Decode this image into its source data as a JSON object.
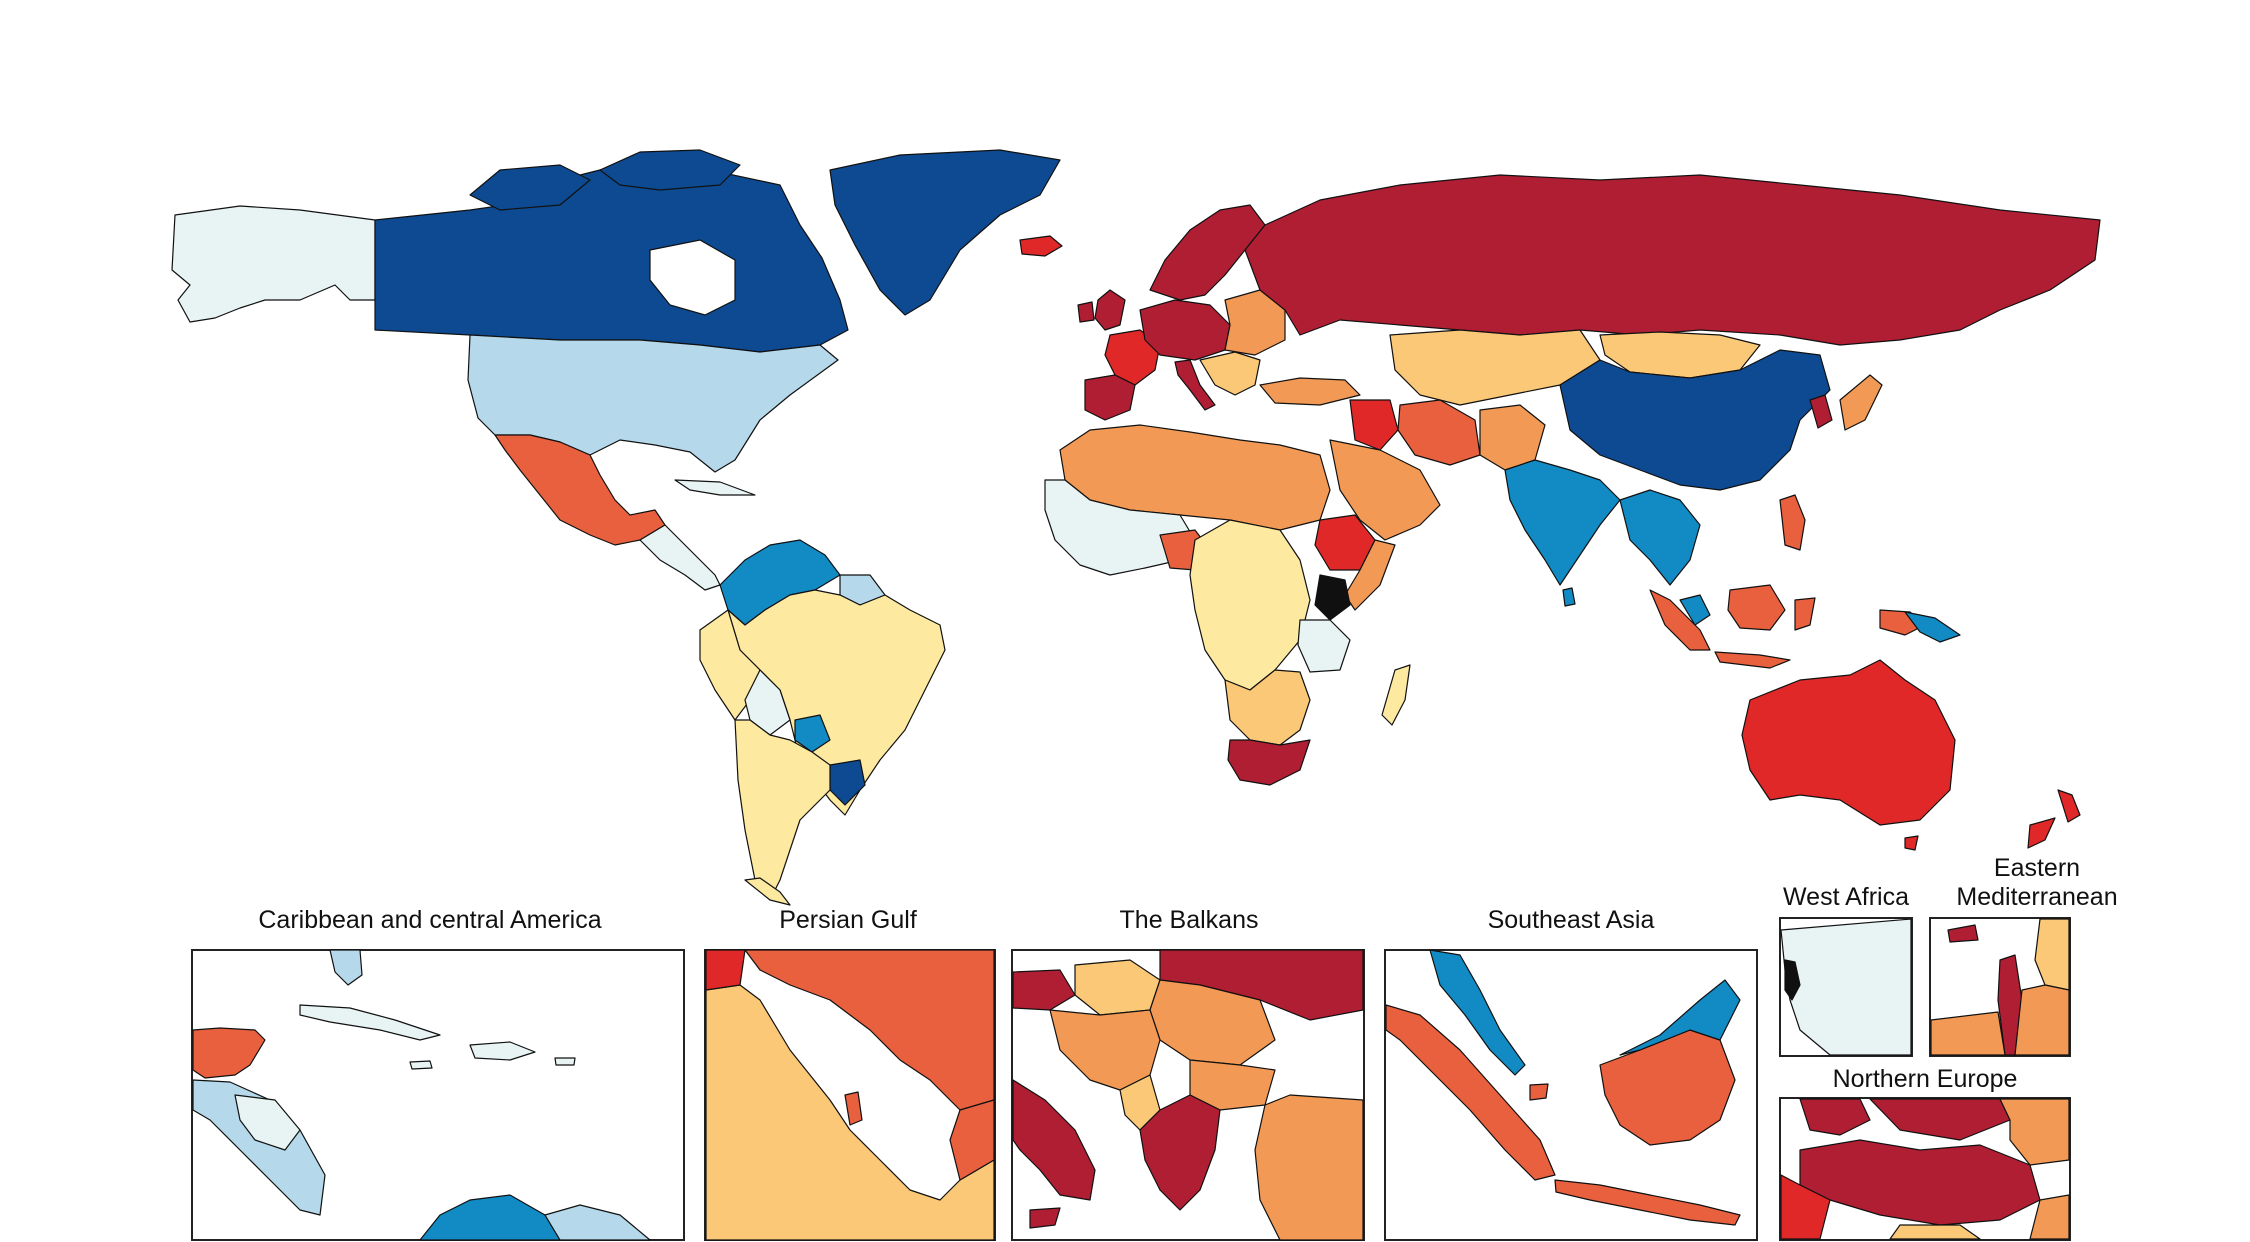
{
  "palette": {
    "ocean": "#ffffff",
    "dark_red": "#b01e34",
    "red": "#e02828",
    "red_orange": "#e9603f",
    "orange": "#f29a55",
    "light_orange": "#fbc877",
    "pale_yellow": "#fde9a0",
    "pale_blue": "#e8f4f4",
    "light_blue": "#b5d8ea",
    "medium_blue": "#128ac4",
    "dark_blue": "#0d4a91",
    "black": "#101010",
    "border": "#111111"
  },
  "insets": {
    "caribbean": {
      "title": "Caribbean and central America"
    },
    "persian_gulf": {
      "title": "Persian Gulf"
    },
    "balkans": {
      "title": "The Balkans"
    },
    "southeast_asia": {
      "title": "Southeast Asia"
    },
    "west_africa": {
      "title": "West Africa"
    },
    "eastern_mediterranean": {
      "title_line1": "Eastern",
      "title_line2": "Mediterranean"
    },
    "northern_europe": {
      "title": "Northern Europe"
    }
  }
}
